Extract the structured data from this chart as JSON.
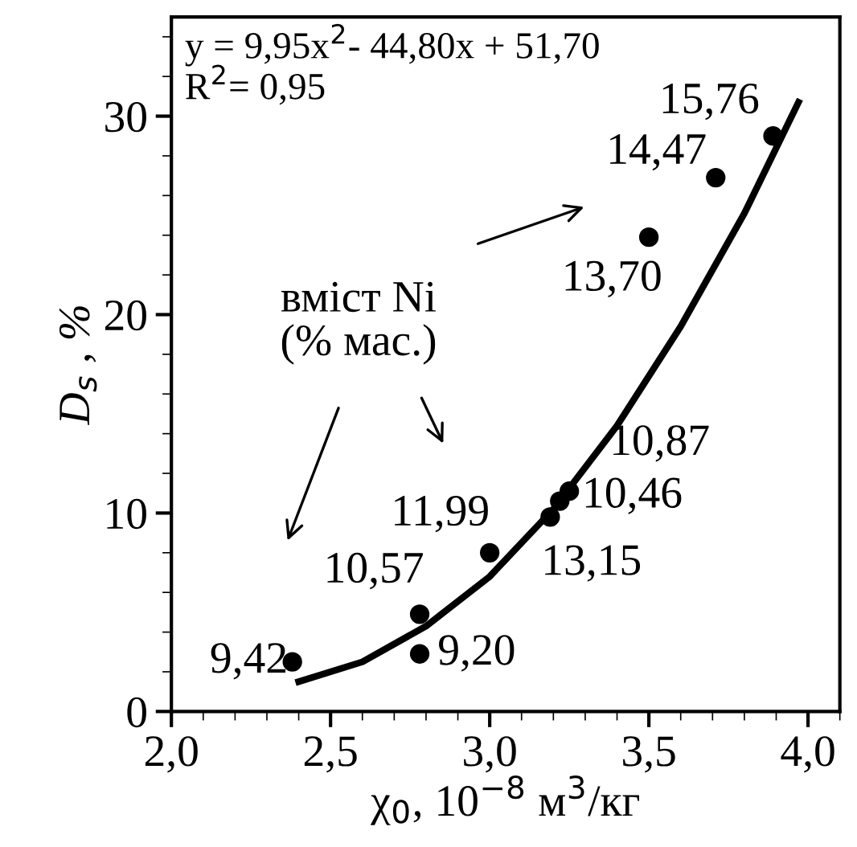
{
  "chart_data": {
    "type": "scatter",
    "xlabel": "χ$_{0}$, 10$^{−8}$ м$^{3}$/кг",
    "ylabel": "D$_{s}$ , %",
    "xlim": [
      2.0,
      4.1
    ],
    "ylim": [
      0,
      35
    ],
    "xticks": [
      {
        "value": 2.0,
        "label": "2,0"
      },
      {
        "value": 2.5,
        "label": "2,5"
      },
      {
        "value": 3.0,
        "label": "3,0"
      },
      {
        "value": 3.5,
        "label": "3,5"
      },
      {
        "value": 4.0,
        "label": "4,0"
      }
    ],
    "yticks": [
      0,
      10,
      20,
      30
    ],
    "grid": false,
    "legend": false,
    "marker": "circle",
    "series": [
      {
        "color": "#000000",
        "x": [
          2.38,
          2.78,
          2.78,
          3.0,
          3.19,
          3.22,
          3.25,
          3.5,
          3.71,
          3.89
        ],
        "values": [
          2.5,
          4.9,
          2.9,
          8.0,
          9.8,
          10.6,
          11.1,
          23.9,
          26.9,
          29.0
        ]
      },
      {
        "type": "line",
        "marker": "none",
        "color": "#000000",
        "x": [
          2.4,
          2.6,
          2.8,
          3.0,
          3.2,
          3.4,
          3.6,
          3.8,
          3.97
        ],
        "values": [
          1.5,
          2.5,
          4.3,
          6.8,
          10.2,
          14.4,
          19.4,
          25.1,
          30.7
        ]
      }
    ],
    "annotations": [
      {
        "text": "9,42",
        "x": 2.38,
        "y": 2.5
      },
      {
        "text": "10,57",
        "x": 2.78,
        "y": 4.9
      },
      {
        "text": "9,20",
        "x": 2.78,
        "y": 2.9
      },
      {
        "text": "11,99",
        "x": 3.0,
        "y": 8.0
      },
      {
        "text": "13,15",
        "x": 3.19,
        "y": 9.8
      },
      {
        "text": "10,46",
        "x": 3.22,
        "y": 10.6
      },
      {
        "text": "10,87",
        "x": 3.25,
        "y": 11.1
      },
      {
        "text": "13,70",
        "x": 3.5,
        "y": 23.9
      },
      {
        "text": "14,47",
        "x": 3.71,
        "y": 26.9
      },
      {
        "text": "15,76",
        "x": 3.89,
        "y": 29.0
      },
      "y = 9,95x$^{2}$- 44,80x + 51,70\nR$^{2}$= 0,95",
      "вміст Ni\n(% мас.)"
    ]
  }
}
